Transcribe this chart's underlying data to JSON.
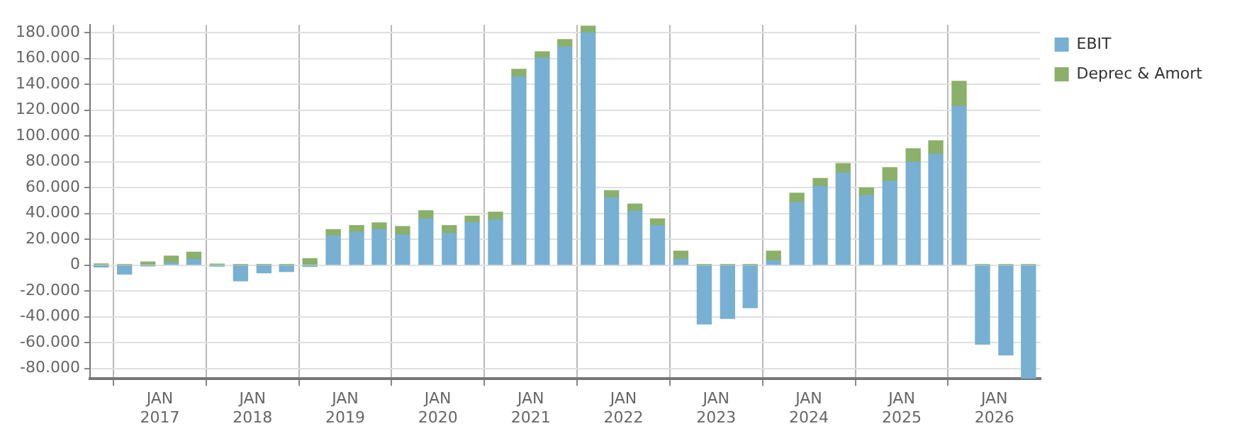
{
  "chart_data": {
    "type": "bar",
    "stacked": true,
    "x": [
      "2016-05-15",
      "2016-08-15",
      "2016-11-15",
      "2017-02-15",
      "2017-05-15",
      "2017-08-15",
      "2017-11-15",
      "2018-02-15",
      "2018-05-15",
      "2018-08-15",
      "2018-11-15",
      "2019-02-15",
      "2019-05-15",
      "2019-08-15",
      "2019-11-15",
      "2020-02-15",
      "2020-05-15",
      "2020-08-15",
      "2020-11-15",
      "2021-02-15",
      "2021-05-15",
      "2021-08-15",
      "2021-11-15",
      "2022-02-15",
      "2022-05-15",
      "2022-08-15",
      "2022-11-15",
      "2023-02-15",
      "2023-05-15",
      "2023-08-15",
      "2023-11-15",
      "2024-02-15",
      "2024-05-15",
      "2024-08-15",
      "2024-11-15",
      "2025-02-15",
      "2025-05-15",
      "2025-08-15",
      "2025-11-15",
      "2026-02-15",
      "2026-05-15"
    ],
    "series": [
      {
        "name": "EBIT",
        "color": "#77b0d3",
        "values": [
          -1500,
          -7000,
          -700,
          1700,
          4500,
          -800,
          -12200,
          -6000,
          -5000,
          -1000,
          22600,
          25400,
          27500,
          23300,
          35800,
          24700,
          33000,
          35100,
          145700,
          160300,
          168700,
          179800,
          52200,
          41700,
          30600,
          4500,
          -45600,
          -41400,
          -33000,
          3500,
          48300,
          60900,
          71300,
          53900,
          65000,
          79700,
          85900,
          122800,
          -61200,
          -69600,
          -87500
        ]
      },
      {
        "name": "Deprec & Amort",
        "color": "#8ab069",
        "values": [
          1000,
          500,
          2500,
          5300,
          5500,
          800,
          500,
          500,
          500,
          5000,
          4900,
          5200,
          5200,
          6600,
          6300,
          5900,
          4900,
          5900,
          6000,
          4900,
          5900,
          5200,
          5500,
          5600,
          5200,
          6300,
          500,
          500,
          500,
          7300,
          7400,
          6200,
          7300,
          5900,
          10500,
          10400,
          10400,
          19500,
          500,
          500,
          500
        ]
      }
    ],
    "xlim": [
      "2016-04-01",
      "2026-07-01"
    ],
    "xticks": [
      {
        "value": "2017-01-01",
        "label": "JAN 2017"
      },
      {
        "value": "2018-01-01",
        "label": "JAN 2018"
      },
      {
        "value": "2019-01-01",
        "label": "JAN 2019"
      },
      {
        "value": "2020-01-01",
        "label": "JAN 2020"
      },
      {
        "value": "2021-01-01",
        "label": "JAN 2021"
      },
      {
        "value": "2022-01-01",
        "label": "JAN 2022"
      },
      {
        "value": "2023-01-01",
        "label": "JAN 2023"
      },
      {
        "value": "2024-01-01",
        "label": "JAN 2024"
      },
      {
        "value": "2025-01-01",
        "label": "JAN 2025"
      },
      {
        "value": "2026-01-01",
        "label": "JAN 2026"
      }
    ],
    "ylim": [
      -88000,
      186000
    ],
    "yticks": [
      {
        "value": -80000,
        "label": "-80.000"
      },
      {
        "value": -60000,
        "label": "-60.000"
      },
      {
        "value": -40000,
        "label": "-40.000"
      },
      {
        "value": -20000,
        "label": "-20.000"
      },
      {
        "value": 0,
        "label": "0"
      },
      {
        "value": 20000,
        "label": "20.000"
      },
      {
        "value": 40000,
        "label": "40.000"
      },
      {
        "value": 60000,
        "label": "60.000"
      },
      {
        "value": 80000,
        "label": "80.000"
      },
      {
        "value": 100000,
        "label": "100.000"
      },
      {
        "value": 120000,
        "label": "120.000"
      },
      {
        "value": 140000,
        "label": "140.000"
      },
      {
        "value": 160000,
        "label": "160.000"
      },
      {
        "value": 180000,
        "label": "180.000"
      }
    ],
    "grid": true,
    "legend": "top right"
  }
}
